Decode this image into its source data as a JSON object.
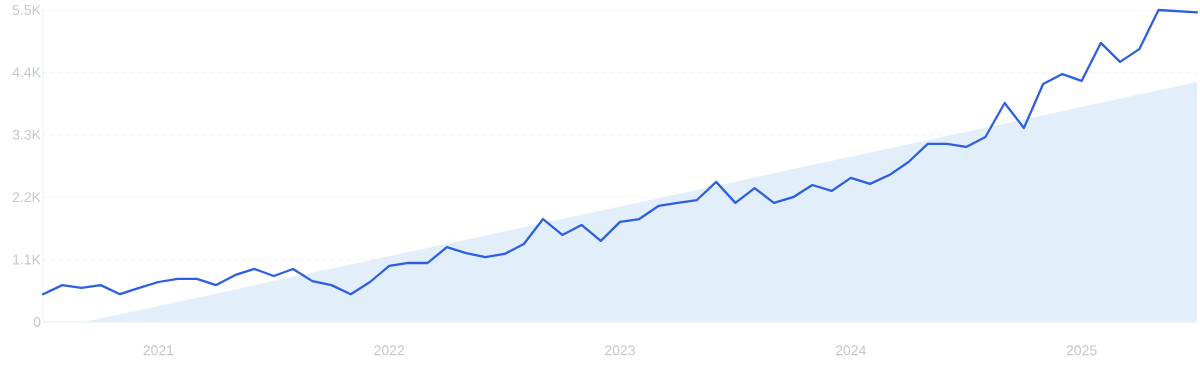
{
  "chart_data": {
    "type": "line",
    "x": [
      "2020-07",
      "2020-08",
      "2020-09",
      "2020-10",
      "2020-11",
      "2020-12",
      "2021-01",
      "2021-02",
      "2021-03",
      "2021-04",
      "2021-05",
      "2021-06",
      "2021-07",
      "2021-08",
      "2021-09",
      "2021-10",
      "2021-11",
      "2021-12",
      "2022-01",
      "2022-02",
      "2022-03",
      "2022-04",
      "2022-05",
      "2022-06",
      "2022-07",
      "2022-08",
      "2022-09",
      "2022-10",
      "2022-11",
      "2022-12",
      "2023-01",
      "2023-02",
      "2023-03",
      "2023-04",
      "2023-05",
      "2023-06",
      "2023-07",
      "2023-08",
      "2023-09",
      "2023-10",
      "2023-11",
      "2023-12",
      "2024-01",
      "2024-02",
      "2024-03",
      "2024-04",
      "2024-05",
      "2024-06",
      "2024-07",
      "2024-08",
      "2024-09",
      "2024-10",
      "2024-11",
      "2024-12",
      "2025-01",
      "2025-02",
      "2025-03",
      "2025-04",
      "2025-05",
      "2025-06",
      "2025-07"
    ],
    "series": [
      {
        "type": "area",
        "color": "#e3eefb",
        "x": [
          "2020-09-05",
          "2025-07"
        ],
        "values": [
          0,
          4230
        ]
      },
      {
        "color": "#2d5fe3",
        "values": [
          490,
          650,
          600,
          650,
          490,
          600,
          705,
          760,
          760,
          650,
          830,
          935,
          810,
          935,
          720,
          650,
          490,
          705,
          990,
          1040,
          1040,
          1320,
          1215,
          1145,
          1200,
          1375,
          1815,
          1535,
          1710,
          1430,
          1765,
          1815,
          2045,
          2100,
          2150,
          2470,
          2100,
          2360,
          2100,
          2200,
          2415,
          2310,
          2540,
          2435,
          2590,
          2820,
          3140,
          3140,
          3085,
          3260,
          3860,
          3420,
          4195,
          4370,
          4250,
          4920,
          4585,
          4810,
          5500,
          5480,
          5460
        ]
      }
    ],
    "xlim": [
      "2020-07",
      "2025-07"
    ],
    "xticks": [
      {
        "value": "2021-01",
        "label": "2021"
      },
      {
        "value": "2022-01",
        "label": "2022"
      },
      {
        "value": "2023-01",
        "label": "2023"
      },
      {
        "value": "2024-01",
        "label": "2024"
      },
      {
        "value": "2025-01",
        "label": "2025"
      }
    ],
    "ylim": [
      0,
      5500
    ],
    "yticks": [
      0,
      {
        "value": 1100,
        "label": "1.1K"
      },
      {
        "value": 2200,
        "label": "2.2K"
      },
      {
        "value": 3300,
        "label": "3.3K"
      },
      {
        "value": 4400,
        "label": "4.4K"
      },
      {
        "value": 5500,
        "label": "5.5K"
      }
    ],
    "grid": "y"
  }
}
